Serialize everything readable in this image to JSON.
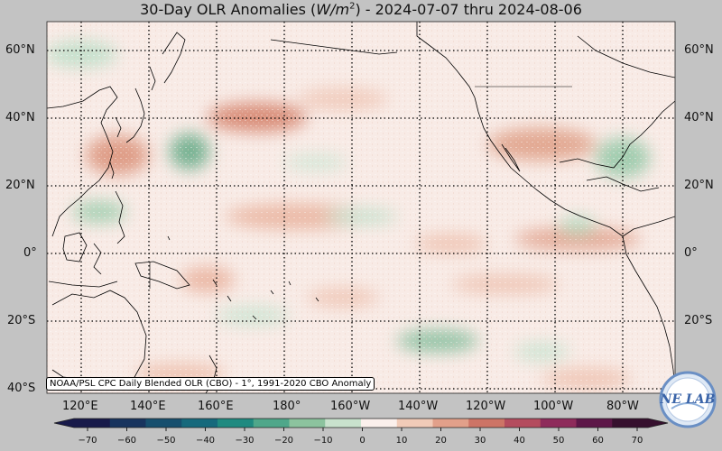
{
  "title": {
    "prefix": "30-Day OLR Anomalies (",
    "unit_base": "W/m",
    "unit_exp": "2",
    "suffix": ") - 2024-07-07 thru 2024-08-06"
  },
  "map": {
    "lat_labels": [
      "60°N",
      "40°N",
      "20°N",
      "0°",
      "20°S",
      "40°S"
    ],
    "lon_labels": [
      "120°E",
      "140°E",
      "160°E",
      "180°",
      "160°W",
      "140°W",
      "120°W",
      "100°W",
      "80°W"
    ],
    "credit": "NOAA/PSL CPC Daily Blended OLR (CBO) - 1°, 1991-2020 CBO Anomaly",
    "logo_text": "NE LAB"
  },
  "colorbar": {
    "ticks": [
      "−70",
      "−60",
      "−50",
      "−40",
      "−30",
      "−20",
      "−10",
      "0",
      "10",
      "20",
      "30",
      "40",
      "50",
      "60",
      "70"
    ],
    "colors": [
      "#181a4a",
      "#18345e",
      "#174f6e",
      "#16697c",
      "#1f8a80",
      "#4fa78a",
      "#8cc39e",
      "#c9e2cd",
      "#fbf0ec",
      "#f1cbb8",
      "#e2a08a",
      "#cd7466",
      "#b44c5e",
      "#8e2b5b",
      "#5d1748",
      "#36102e"
    ]
  }
}
